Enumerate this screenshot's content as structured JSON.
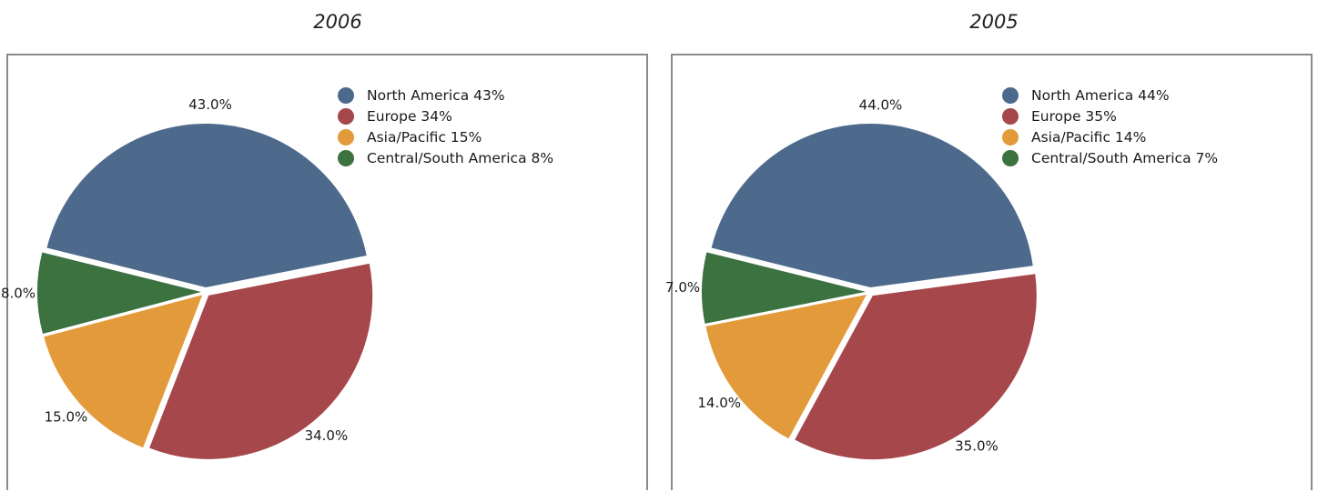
{
  "chart_data": [
    {
      "type": "pie",
      "title": "2006",
      "categories": [
        "North America",
        "Europe",
        "Asia/Pacific",
        "Central/South America"
      ],
      "values": [
        43.0,
        34.0,
        15.0,
        8.0
      ],
      "slice_labels": [
        "43.0%",
        "34.0%",
        "15.0%",
        "8.0%"
      ],
      "legend": [
        "North America 43%",
        "Europe 34%",
        "Asia/Pacific 15%",
        "Central/South America 8%"
      ],
      "colors": [
        "#4d6a8c",
        "#a5474b",
        "#e39a3b",
        "#3c7140"
      ],
      "legend_position": "top-right"
    },
    {
      "type": "pie",
      "title": "2005",
      "categories": [
        "North America",
        "Europe",
        "Asia/Pacific",
        "Central/South America"
      ],
      "values": [
        44.0,
        35.0,
        14.0,
        7.0
      ],
      "slice_labels": [
        "44.0%",
        "35.0%",
        "14.0%",
        "7.0%"
      ],
      "legend": [
        "North America 44%",
        "Europe 35%",
        "Asia/Pacific 14%",
        "Central/South America 7%"
      ],
      "colors": [
        "#4d6a8c",
        "#a5474b",
        "#e39a3b",
        "#3c7140"
      ],
      "legend_position": "top-right"
    }
  ]
}
